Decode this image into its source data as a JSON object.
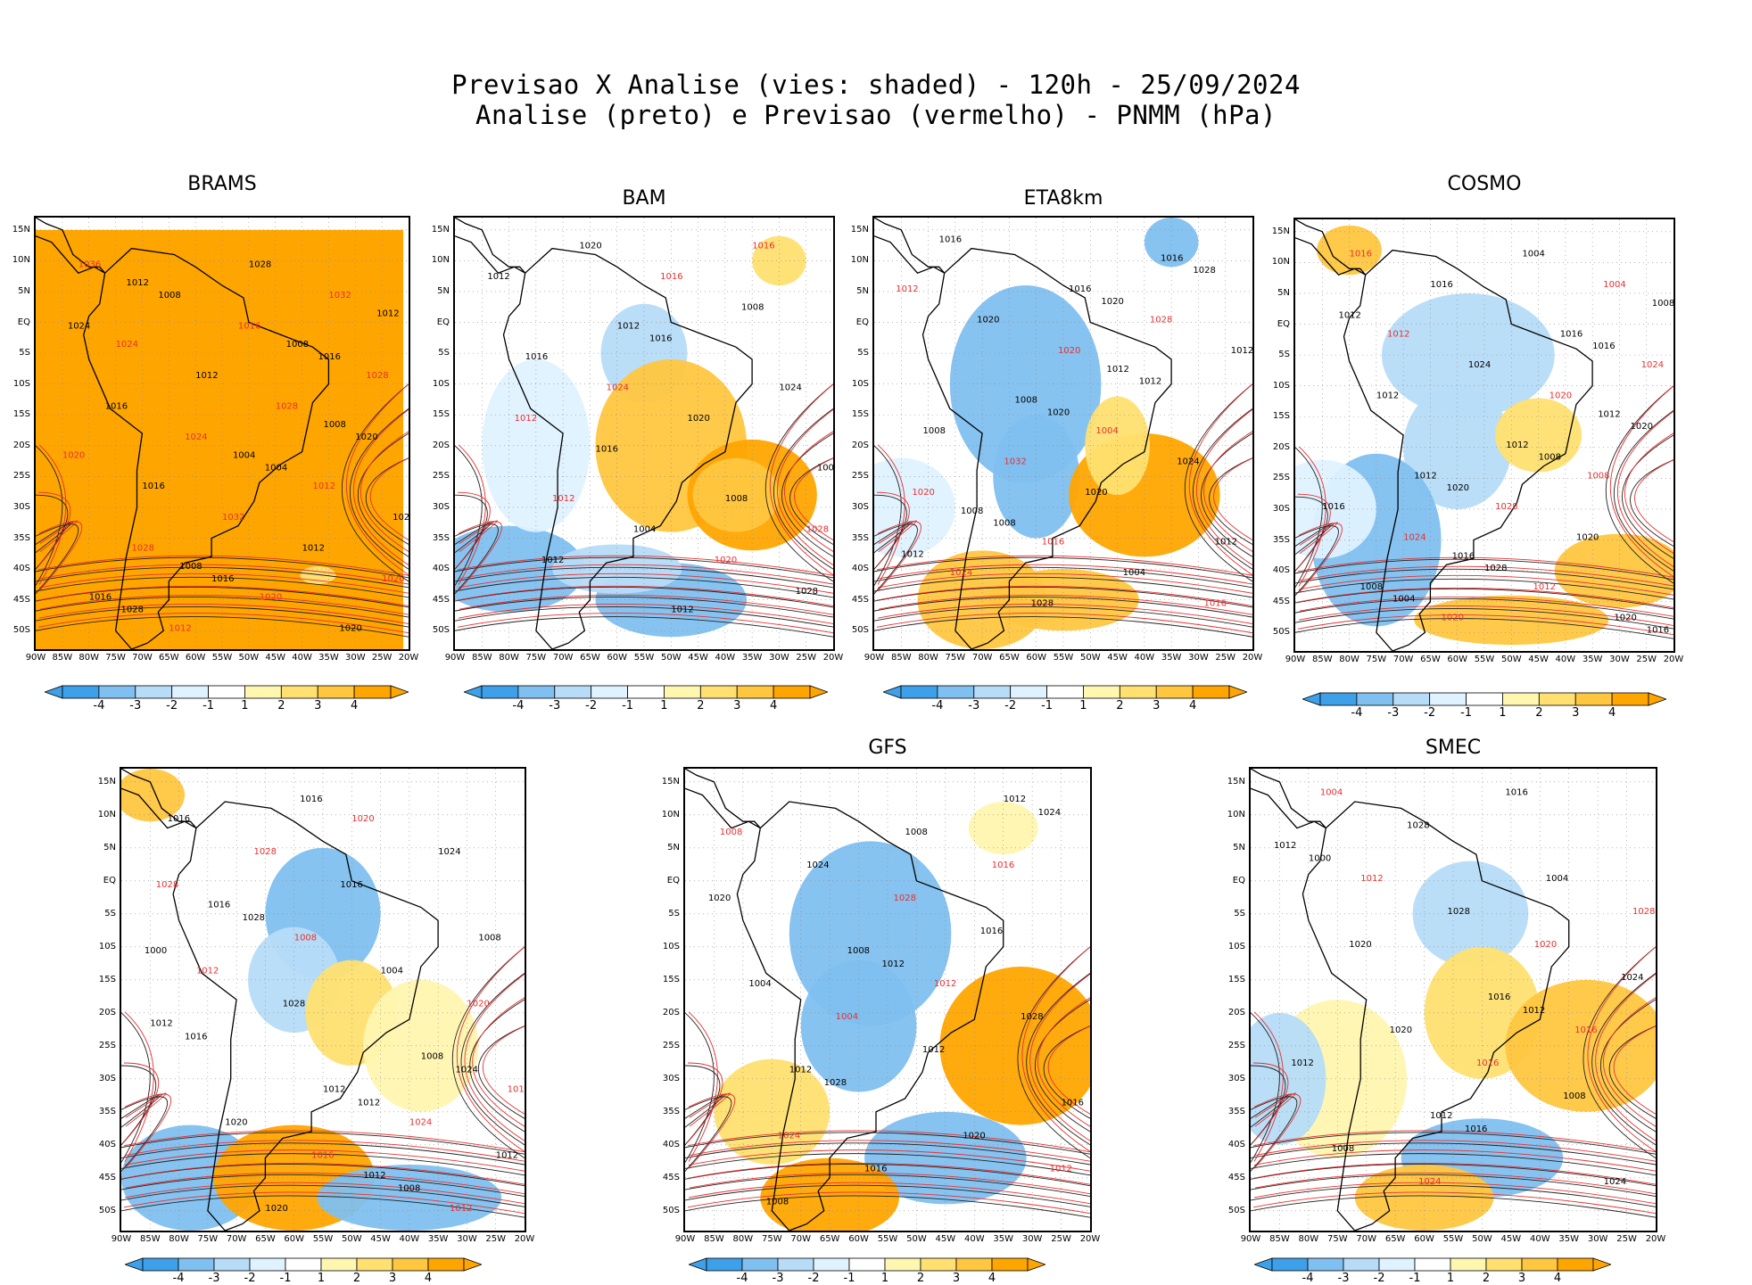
{
  "header": {
    "title": "Previsao X Analise (vies: shaded) - 120h - 25/09/2024",
    "subtitle": "Analise (preto) e Previsao (vermelho) - PNMM (hPa)"
  },
  "axes": {
    "lat_labels": [
      "15N",
      "10N",
      "5N",
      "EQ",
      "5S",
      "10S",
      "15S",
      "20S",
      "25S",
      "30S",
      "35S",
      "40S",
      "45S",
      "50S"
    ],
    "lon_labels": [
      "90W",
      "85W",
      "80W",
      "75W",
      "70W",
      "65W",
      "60W",
      "55W",
      "50W",
      "45W",
      "40W",
      "35W",
      "30W",
      "25W",
      "20W"
    ]
  },
  "colorbar": {
    "labels": [
      "-4",
      "-3",
      "-2",
      "-1",
      "1",
      "2",
      "3",
      "4"
    ],
    "colors": [
      "#3ea0e8",
      "#7fc0f0",
      "#b6dcf8",
      "#dff2ff",
      "#ffffff",
      "#fff6b0",
      "#ffe070",
      "#ffc640",
      "#ffa500"
    ]
  },
  "contour_colors": {
    "analysis": "#000000",
    "forecast": "#e83030"
  },
  "panels": [
    {
      "id": "brams",
      "name": "BRAMS",
      "iso_black": [
        "1012",
        "1008",
        "1008",
        "1012",
        "1004",
        "1016",
        "1008",
        "1016",
        "1020",
        "1012",
        "1024",
        "1028",
        "1016",
        "1012",
        "1008",
        "1020",
        "1016",
        "1024",
        "1004",
        "1028",
        "1016"
      ],
      "iso_red": [
        "1020",
        "1020",
        "1024",
        "1012",
        "1012",
        "1028",
        "1032",
        "1036",
        "1028",
        "1028",
        "1032",
        "1024",
        "1020",
        "1016"
      ]
    },
    {
      "id": "bam",
      "name": "BAM",
      "iso_black": [
        "1012",
        "1008",
        "1012",
        "1016",
        "1008",
        "1020",
        "1024",
        "1004",
        "1012",
        "1020",
        "1012",
        "1008",
        "1016",
        "1028",
        "1016"
      ],
      "iso_red": [
        "1012",
        "1016",
        "1024",
        "1028",
        "1016",
        "1012",
        "1020"
      ]
    },
    {
      "id": "eta8km",
      "name": "ETA8km",
      "iso_black": [
        "1012",
        "1008",
        "1016",
        "1008",
        "1012",
        "1016",
        "1008",
        "1004",
        "1020",
        "1024",
        "1028",
        "1012",
        "1020",
        "1016",
        "1012",
        "1008",
        "1028",
        "1020",
        "1012",
        "1020"
      ],
      "iso_red": [
        "1016",
        "1012",
        "1004",
        "1024",
        "1028",
        "1032",
        "1016",
        "1020",
        "1020"
      ]
    },
    {
      "id": "cosmo",
      "name": "COSMO",
      "iso_black": [
        "1012",
        "1016",
        "1008",
        "1012",
        "1008",
        "1016",
        "1012",
        "1020",
        "1024",
        "1016",
        "1004",
        "1012",
        "1020",
        "1016",
        "1020",
        "1028",
        "1012",
        "1008",
        "1004",
        "1016",
        "1020",
        "1016"
      ],
      "iso_red": [
        "1012",
        "1012",
        "1008",
        "1020",
        "1024",
        "1028",
        "1016",
        "1020",
        "1024",
        "1004"
      ]
    },
    {
      "id": "panel5",
      "name": "",
      "iso_black": [
        "1012",
        "1012",
        "1016",
        "1008",
        "1020",
        "1008",
        "1012",
        "1016",
        "1004",
        "1020",
        "1024",
        "1028",
        "1012",
        "1016",
        "1016",
        "1008",
        "1028",
        "1024",
        "1016",
        "1000",
        "1012"
      ],
      "iso_red": [
        "1012",
        "1008",
        "1016",
        "1020",
        "1012",
        "1024",
        "1028",
        "1020",
        "1016",
        "1028"
      ]
    },
    {
      "id": "gfs",
      "name": "GFS",
      "iso_black": [
        "1012",
        "1012",
        "1008",
        "1016",
        "1008",
        "1004",
        "1020",
        "1024",
        "1028",
        "1016",
        "1020",
        "1012",
        "1008",
        "1016",
        "1028",
        "1024",
        "1012"
      ],
      "iso_red": [
        "1008",
        "1012",
        "1024",
        "1016",
        "1004",
        "1012",
        "1028"
      ]
    },
    {
      "id": "smec",
      "name": "SMEC",
      "iso_black": [
        "1012",
        "1012",
        "1016",
        "1008",
        "1004",
        "1020",
        "1024",
        "1028",
        "1012",
        "1016",
        "1020",
        "1008",
        "1028",
        "1024",
        "1016",
        "1000",
        "1012"
      ],
      "iso_red": [
        "1012",
        "1016",
        "1024",
        "1028",
        "1016",
        "1004",
        "1020"
      ]
    }
  ]
}
